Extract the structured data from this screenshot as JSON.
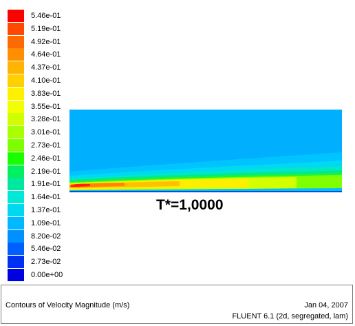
{
  "legend": {
    "labels": [
      "5.46e-01",
      "5.19e-01",
      "4.92e-01",
      "4.64e-01",
      "4.37e-01",
      "4.10e-01",
      "3.83e-01",
      "3.55e-01",
      "3.28e-01",
      "3.01e-01",
      "2.73e-01",
      "2.46e-01",
      "2.19e-01",
      "1.91e-01",
      "1.64e-01",
      "1.37e-01",
      "1.09e-01",
      "8.20e-02",
      "5.46e-02",
      "2.73e-02",
      "0.00e+00"
    ],
    "colors": [
      "#ff0000",
      "#ff4800",
      "#ff6a00",
      "#ff8f00",
      "#ffb400",
      "#ffd000",
      "#fff000",
      "#f2ff00",
      "#d0ff00",
      "#a8ff00",
      "#7dff00",
      "#18ff00",
      "#00f060",
      "#00e8a0",
      "#00e8d8",
      "#00d8f0",
      "#00b8ff",
      "#0090ff",
      "#0060ff",
      "#0030f0",
      "#0000e0"
    ]
  },
  "annotation": "T*=1,0000",
  "footer": {
    "title": "Contours of Velocity Magnitude (m/s)",
    "date": "Jan 04, 2007",
    "solver": "FLUENT 6.1 (2d, segregated, lam)"
  }
}
